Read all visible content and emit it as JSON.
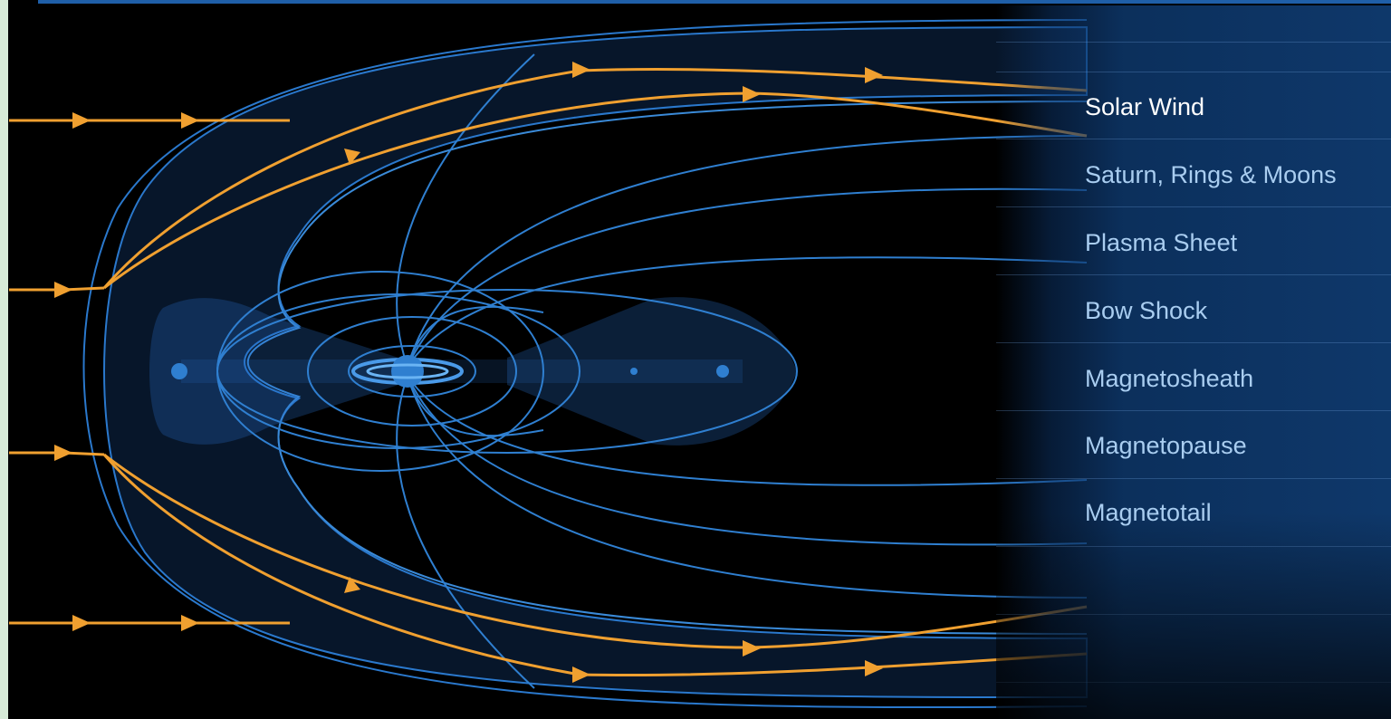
{
  "menu": {
    "items": [
      {
        "label": "Solar Wind",
        "active": true
      },
      {
        "label": "Saturn, Rings & Moons",
        "active": false
      },
      {
        "label": "Plasma Sheet",
        "active": false
      },
      {
        "label": "Bow Shock",
        "active": false
      },
      {
        "label": "Magnetosheath",
        "active": false
      },
      {
        "label": "Magnetopause",
        "active": false
      },
      {
        "label": "Magnetotail",
        "active": false
      }
    ]
  },
  "colors": {
    "background": "#000000",
    "field_lines": "#2f7fd0",
    "solar_wind": "#f0a030",
    "menu_text": "#a9cdf0",
    "menu_active": "#ffffff",
    "panel": "#103e76"
  }
}
